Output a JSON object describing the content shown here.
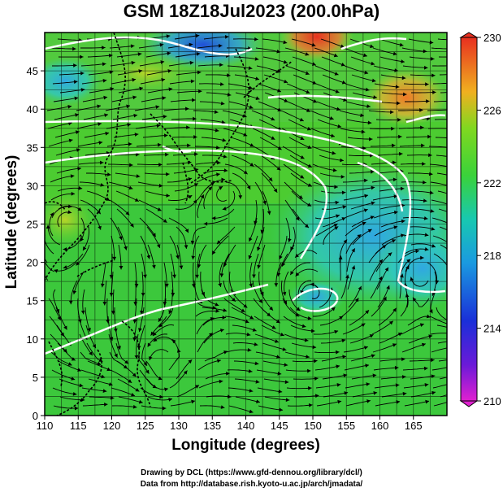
{
  "title": "GSM 18Z18Jul2023 (200.0hPa)",
  "axes": {
    "xlabel": "Longitude (degrees)",
    "ylabel": "Latitude  (degrees)",
    "x_ticks": [
      "110",
      "115",
      "120",
      "125",
      "130",
      "135",
      "140",
      "145",
      "150",
      "155",
      "160",
      "165"
    ],
    "y_ticks": [
      "0",
      "5",
      "10",
      "15",
      "20",
      "25",
      "30",
      "35",
      "40",
      "45"
    ]
  },
  "colorbar": {
    "ticks": [
      "210",
      "214",
      "218",
      "222",
      "226",
      "230"
    ]
  },
  "credits": {
    "line1": "Drawing by DCL (https://www.gfd-dennou.org/library/dcl/)",
    "line2": "Data from http://database.rish.kyoto-u.ac.jp/arch/jmadata/"
  }
}
